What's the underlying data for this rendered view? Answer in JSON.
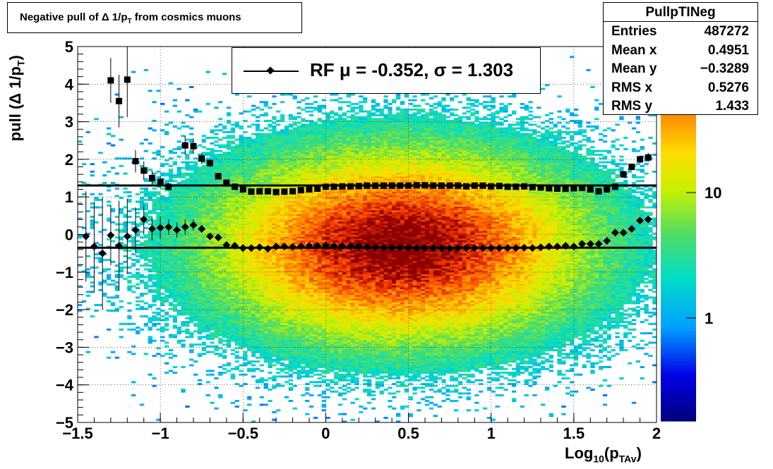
{
  "title": {
    "prefix": "Negative pull of ",
    "delta": "Δ",
    "mid": " 1/p",
    "sub": "T",
    "suffix": " from cosmics muons"
  },
  "stats": {
    "name": "PullpTINeg",
    "rows": [
      {
        "label": "Entries",
        "value": "487272"
      },
      {
        "label": "Mean x",
        "value": "0.4951"
      },
      {
        "label": "Mean y",
        "value": "−0.3289"
      },
      {
        "label": "RMS x",
        "value": "0.5276"
      },
      {
        "label": "RMS y",
        "value": "1.433"
      }
    ]
  },
  "legend": {
    "text": "RF μ = -0.352, σ =   1.303"
  },
  "axes": {
    "x_label_main": "Log",
    "x_label_sub1": "10",
    "x_label_mid": "(p",
    "x_label_sub2": "TAv",
    "x_label_end": ")",
    "y_label": "pull (Δ 1/p",
    "y_label_sub": "T",
    "y_label_end": ")"
  },
  "chart_data": {
    "type": "heatmap",
    "xlim": [
      -1.5,
      2.0
    ],
    "ylim": [
      -5,
      5
    ],
    "x_ticks": [
      "−1.5",
      "−1",
      "−0.5",
      "0",
      "0.5",
      "1",
      "1.5",
      "2"
    ],
    "x_tick_values": [
      -1.5,
      -1,
      -0.5,
      0,
      0.5,
      1,
      1.5,
      2
    ],
    "y_ticks": [
      "−5",
      "−4",
      "−3",
      "−2",
      "−1",
      "0",
      "1",
      "2",
      "3",
      "4",
      "5"
    ],
    "y_tick_values": [
      -5,
      -4,
      -3,
      -2,
      -1,
      0,
      1,
      2,
      3,
      4,
      5
    ],
    "z_scale": "log",
    "z_ticks": [
      "1",
      "10"
    ],
    "z_tick_values": [
      1,
      10
    ],
    "grid": true,
    "colors": {
      "low": "#00007f",
      "high": "#7f0000",
      "markers": "#000000"
    },
    "mean_series": {
      "name": "mean",
      "x": [
        -1.45,
        -1.4,
        -1.35,
        -1.3,
        -1.25,
        -1.2,
        -1.15,
        -1.1,
        -1.05,
        -1.0,
        -0.95,
        -0.9,
        -0.85,
        -0.8,
        -0.75,
        -0.7,
        -0.65,
        -0.6,
        -0.55,
        -0.5,
        -0.45,
        -0.4,
        -0.35,
        -0.3,
        -0.25,
        -0.2,
        -0.15,
        -0.1,
        -0.05,
        0.0,
        0.05,
        0.1,
        0.15,
        0.2,
        0.25,
        0.3,
        0.35,
        0.4,
        0.45,
        0.5,
        0.55,
        0.6,
        0.65,
        0.7,
        0.75,
        0.8,
        0.85,
        0.9,
        0.95,
        1.0,
        1.05,
        1.1,
        1.15,
        1.2,
        1.25,
        1.3,
        1.35,
        1.4,
        1.45,
        1.5,
        1.55,
        1.6,
        1.65,
        1.7,
        1.75,
        1.8,
        1.85,
        1.9,
        1.95
      ],
      "y": [
        -0.05,
        -0.32,
        -0.5,
        -0.02,
        -0.3,
        -0.05,
        0.12,
        0.4,
        0.15,
        0.18,
        0.2,
        0.12,
        0.2,
        0.25,
        0.15,
        -0.05,
        -0.08,
        -0.28,
        -0.3,
        -0.36,
        -0.36,
        -0.34,
        -0.38,
        -0.32,
        -0.32,
        -0.33,
        -0.31,
        -0.3,
        -0.3,
        -0.29,
        -0.31,
        -0.31,
        -0.31,
        -0.32,
        -0.33,
        -0.34,
        -0.35,
        -0.35,
        -0.35,
        -0.35,
        -0.36,
        -0.36,
        -0.36,
        -0.37,
        -0.37,
        -0.36,
        -0.36,
        -0.36,
        -0.36,
        -0.36,
        -0.36,
        -0.36,
        -0.36,
        -0.35,
        -0.36,
        -0.34,
        -0.32,
        -0.32,
        -0.3,
        -0.32,
        -0.25,
        -0.25,
        -0.25,
        -0.17,
        0.05,
        0.05,
        0.15,
        0.37,
        0.4
      ],
      "yerr": [
        1.2,
        1.2,
        1.5,
        0.8,
        1.2,
        1.0,
        0.6,
        0.4,
        0.3,
        0.3,
        0.2,
        0.2,
        0.2,
        0.15,
        0.1,
        0.05,
        0.05,
        0.03,
        0.03,
        0.02,
        0.02,
        0.02,
        0.02,
        0.02,
        0.02,
        0.02,
        0.02,
        0.02,
        0.02,
        0.02,
        0.02,
        0.02,
        0.02,
        0.02,
        0.02,
        0.02,
        0.02,
        0.02,
        0.02,
        0.02,
        0.02,
        0.02,
        0.02,
        0.02,
        0.02,
        0.02,
        0.02,
        0.02,
        0.02,
        0.02,
        0.02,
        0.02,
        0.02,
        0.02,
        0.02,
        0.02,
        0.02,
        0.02,
        0.02,
        0.02,
        0.03,
        0.03,
        0.03,
        0.04,
        0.05,
        0.06,
        0.06,
        0.08,
        0.1
      ]
    },
    "sigma_series": {
      "name": "sigma",
      "x": [
        -1.3,
        -1.25,
        -1.2,
        -1.15,
        -1.1,
        -1.05,
        -1.0,
        -0.95,
        -0.85,
        -0.8,
        -0.75,
        -0.7,
        -0.65,
        -0.6,
        -0.55,
        -0.5,
        -0.45,
        -0.4,
        -0.35,
        -0.3,
        -0.25,
        -0.2,
        -0.15,
        -0.1,
        -0.05,
        0.0,
        0.05,
        0.1,
        0.15,
        0.2,
        0.25,
        0.3,
        0.35,
        0.4,
        0.45,
        0.5,
        0.55,
        0.6,
        0.65,
        0.7,
        0.75,
        0.8,
        0.85,
        0.9,
        0.95,
        1.0,
        1.05,
        1.1,
        1.15,
        1.2,
        1.25,
        1.3,
        1.35,
        1.4,
        1.45,
        1.5,
        1.55,
        1.6,
        1.65,
        1.7,
        1.75,
        1.8,
        1.85,
        1.9,
        1.95
      ],
      "y": [
        4.1,
        3.55,
        4.12,
        1.95,
        1.7,
        1.5,
        1.4,
        1.27,
        2.37,
        2.35,
        2.02,
        1.9,
        1.55,
        1.38,
        1.27,
        1.2,
        1.14,
        1.15,
        1.15,
        1.13,
        1.14,
        1.15,
        1.18,
        1.2,
        1.22,
        1.27,
        1.27,
        1.28,
        1.28,
        1.29,
        1.3,
        1.3,
        1.3,
        1.3,
        1.3,
        1.3,
        1.31,
        1.31,
        1.3,
        1.3,
        1.3,
        1.3,
        1.28,
        1.3,
        1.3,
        1.28,
        1.29,
        1.27,
        1.27,
        1.28,
        1.26,
        1.25,
        1.23,
        1.22,
        1.22,
        1.23,
        1.24,
        1.2,
        1.15,
        1.2,
        1.27,
        1.6,
        1.8,
        2.0,
        2.05
      ],
      "yerr": [
        0.6,
        0.7,
        1.0,
        0.3,
        0.25,
        0.2,
        0.15,
        0.1,
        0.25,
        0.2,
        0.15,
        0.1,
        0.05,
        0.04,
        0.03,
        0.02,
        0.02,
        0.02,
        0.02,
        0.02,
        0.02,
        0.02,
        0.02,
        0.02,
        0.02,
        0.02,
        0.02,
        0.02,
        0.02,
        0.02,
        0.02,
        0.02,
        0.02,
        0.02,
        0.02,
        0.02,
        0.02,
        0.02,
        0.02,
        0.02,
        0.02,
        0.02,
        0.02,
        0.02,
        0.02,
        0.02,
        0.02,
        0.02,
        0.02,
        0.02,
        0.02,
        0.02,
        0.02,
        0.02,
        0.02,
        0.02,
        0.03,
        0.03,
        0.04,
        0.05,
        0.06,
        0.07,
        0.08,
        0.1,
        0.12
      ]
    },
    "fit_lines": [
      {
        "name": "mean-fit",
        "y": -0.352
      },
      {
        "name": "sigma-fit",
        "y": 1.303
      }
    ]
  }
}
